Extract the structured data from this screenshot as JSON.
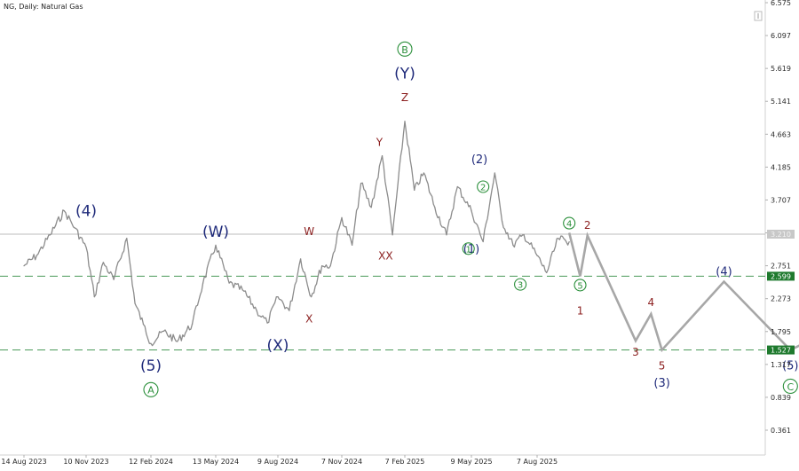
{
  "chart_data": {
    "type": "line",
    "title": "NG, Daily:  Natural Gas",
    "colors": {
      "price": "#8c8c8c",
      "projection": "#a7a7a7",
      "support_line": "#4b9a5a",
      "current_line": "#bdbdbd",
      "badge_green": "#1f7a2e",
      "badge_gray": "#c8c8c8",
      "label_navy": "#1f2a7a",
      "label_maroon": "#8b1e1e",
      "label_green": "#2a8f3a"
    },
    "ylim": [
      0.0,
      6.575
    ],
    "y_ticks": [
      "6.575",
      "6.097",
      "5.619",
      "5.141",
      "4.663",
      "4.185",
      "3.707",
      "3.229",
      "2.751",
      "2.273",
      "1.795",
      "1.317",
      "0.839",
      "0.361"
    ],
    "x_ticks": [
      "14 Aug 2023",
      "10 Nov 2023",
      "12 Feb 2024",
      "13 May 2024",
      "9 Aug 2024",
      "7 Nov 2024",
      "7 Feb 2025",
      "9 May 2025",
      "7 Aug 2025"
    ],
    "levels": [
      {
        "label": "2.599",
        "value": 2.599,
        "style": "dashed",
        "badge": "green"
      },
      {
        "label": "1.527",
        "value": 1.527,
        "style": "dashed",
        "badge": "green"
      },
      {
        "label": "3.210",
        "value": 3.21,
        "style": "solid",
        "badge": "gray"
      }
    ],
    "price_series": {
      "name": "",
      "x": [
        "14 Aug 2023",
        "1 Sep 2023",
        "20 Sep 2023",
        "10 Oct 2023",
        "25 Oct 2023",
        "10 Nov 2023",
        "22 Nov 2023",
        "5 Dec 2023",
        "20 Dec 2023",
        "8 Jan 2024",
        "20 Jan 2024",
        "1 Feb 2024",
        "12 Feb 2024",
        "1 Mar 2024",
        "20 Mar 2024",
        "10 Apr 2024",
        "25 Apr 2024",
        "13 May 2024",
        "1 Jun 2024",
        "20 Jun 2024",
        "10 Jul 2024",
        "25 Jul 2024",
        "9 Aug 2024",
        "25 Aug 2024",
        "10 Sep 2024",
        "25 Sep 2024",
        "10 Oct 2024",
        "22 Oct 2024",
        "7 Nov 2024",
        "22 Nov 2024",
        "5 Dec 2024",
        "20 Dec 2024",
        "5 Jan 2025",
        "20 Jan 2025",
        "7 Feb 2025",
        "20 Feb 2025",
        "5 Mar 2025",
        "20 Mar 2025",
        "5 Apr 2025",
        "20 Apr 2025",
        "9 May 2025",
        "25 May 2025",
        "10 Jun 2025",
        "20 Jun 2025",
        "5 Jul 2025",
        "20 Jul 2025",
        "7 Aug 2025",
        "20 Aug 2025",
        "5 Sep 2025",
        "20 Sep 2025"
      ],
      "y": [
        2.75,
        2.9,
        3.2,
        3.55,
        3.3,
        3.02,
        2.3,
        2.8,
        2.55,
        3.15,
        2.2,
        1.9,
        1.62,
        1.8,
        1.65,
        1.9,
        2.5,
        3.05,
        2.5,
        2.4,
        2.1,
        1.92,
        2.3,
        2.1,
        2.85,
        2.3,
        2.75,
        2.75,
        3.45,
        3.05,
        3.95,
        3.6,
        4.35,
        3.2,
        4.85,
        3.85,
        4.1,
        3.6,
        3.2,
        3.9,
        3.55,
        3.1,
        4.1,
        3.4,
        3.05,
        3.2,
        2.9,
        2.65,
        3.15,
        3.1
      ]
    },
    "projection_series": {
      "name": "",
      "x": [
        "20 Sep 2025",
        "5 Oct 2025",
        "15 Oct 2025",
        "20 Dec 2025",
        "10 Jan 2026",
        "25 Jan 2026",
        "20 Apr 2026",
        "20 Jul 2026",
        "20 Sep 2026"
      ],
      "y": [
        3.23,
        2.599,
        3.19,
        1.66,
        2.05,
        1.527,
        2.52,
        1.527,
        1.85
      ]
    },
    "wave_labels": [
      {
        "text": "(4)",
        "date": "10 Nov 2023",
        "price": 3.55,
        "color": "navy",
        "size": "lg",
        "circled": false
      },
      {
        "text": "(5)",
        "date": "12 Feb 2024",
        "price": 1.3,
        "color": "navy",
        "size": "lg",
        "circled": false
      },
      {
        "text": "A",
        "date": "12 Feb 2024",
        "price": 0.95,
        "color": "green",
        "size": "md",
        "circled": true
      },
      {
        "text": "(W)",
        "date": "13 May 2024",
        "price": 3.25,
        "color": "navy",
        "size": "lg",
        "circled": false
      },
      {
        "text": "(X)",
        "date": "9 Aug 2024",
        "price": 1.6,
        "color": "navy",
        "size": "lg",
        "circled": false
      },
      {
        "text": "W",
        "date": "22 Sep 2024",
        "price": 3.25,
        "color": "maroon",
        "size": "sm",
        "circled": false
      },
      {
        "text": "X",
        "date": "22 Sep 2024",
        "price": 1.98,
        "color": "maroon",
        "size": "sm",
        "circled": false
      },
      {
        "text": "Y",
        "date": "1 Jan 2025",
        "price": 4.55,
        "color": "maroon",
        "size": "sm",
        "circled": false
      },
      {
        "text": "XX",
        "date": "10 Jan 2025",
        "price": 2.9,
        "color": "maroon",
        "size": "sm",
        "circled": false
      },
      {
        "text": "B",
        "date": "7 Feb 2025",
        "price": 5.9,
        "color": "green",
        "size": "md",
        "circled": true
      },
      {
        "text": "(Y)",
        "date": "7 Feb 2025",
        "price": 5.55,
        "color": "navy",
        "size": "lg",
        "circled": false
      },
      {
        "text": "Z",
        "date": "7 Feb 2025",
        "price": 5.2,
        "color": "maroon",
        "size": "sm",
        "circled": false
      },
      {
        "text": "(2)",
        "date": "20 May 2025",
        "price": 4.3,
        "color": "navy",
        "size": "md",
        "circled": false
      },
      {
        "text": "(1)",
        "date": "9 May 2025",
        "price": 3.0,
        "color": "navy",
        "size": "md",
        "circled": false
      },
      {
        "text": "2",
        "date": "25 May 2025",
        "price": 3.9,
        "color": "green",
        "size": "sm",
        "circled": true
      },
      {
        "text": "1",
        "date": "5 May 2025",
        "price": 3.0,
        "color": "green",
        "size": "sm",
        "circled": true
      },
      {
        "text": "3",
        "date": "15 Jul 2025",
        "price": 2.48,
        "color": "green",
        "size": "sm",
        "circled": true
      },
      {
        "text": "4",
        "date": "20 Sep 2025",
        "price": 3.37,
        "color": "green",
        "size": "sm",
        "circled": true
      },
      {
        "text": "5",
        "date": "5 Oct 2025",
        "price": 2.47,
        "color": "green",
        "size": "sm",
        "circled": true
      },
      {
        "text": "1",
        "date": "5 Oct 2025",
        "price": 2.1,
        "color": "maroon",
        "size": "sm",
        "circled": false
      },
      {
        "text": "2",
        "date": "15 Oct 2025",
        "price": 3.34,
        "color": "maroon",
        "size": "sm",
        "circled": false
      },
      {
        "text": "3",
        "date": "20 Dec 2025",
        "price": 1.5,
        "color": "maroon",
        "size": "sm",
        "circled": false
      },
      {
        "text": "4",
        "date": "10 Jan 2026",
        "price": 2.22,
        "color": "maroon",
        "size": "sm",
        "circled": false
      },
      {
        "text": "5",
        "date": "25 Jan 2026",
        "price": 1.3,
        "color": "maroon",
        "size": "sm",
        "circled": false
      },
      {
        "text": "(3)",
        "date": "25 Jan 2026",
        "price": 1.05,
        "color": "navy",
        "size": "md",
        "circled": false
      },
      {
        "text": "(4)",
        "date": "20 Apr 2026",
        "price": 2.67,
        "color": "navy",
        "size": "md",
        "circled": false
      },
      {
        "text": "(5)",
        "date": "20 Jul 2026",
        "price": 1.3,
        "color": "navy",
        "size": "md",
        "circled": false
      },
      {
        "text": "C",
        "date": "20 Jul 2026",
        "price": 1.0,
        "color": "green",
        "size": "md",
        "circled": true
      }
    ]
  }
}
